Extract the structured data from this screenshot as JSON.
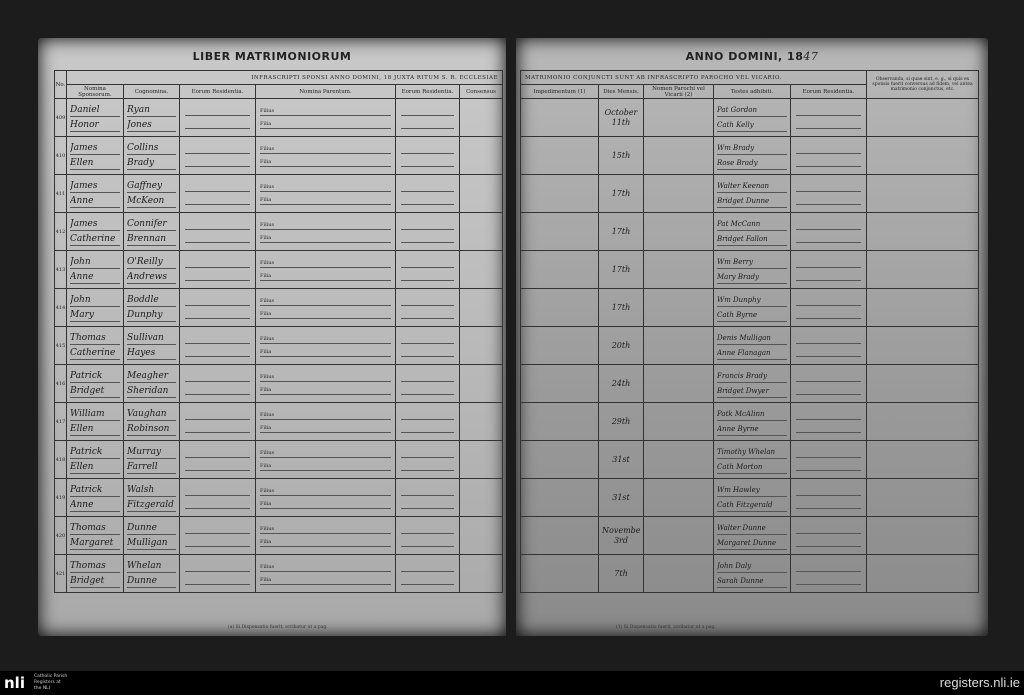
{
  "left_page": {
    "title": "LIBER MATRIMONIORUM",
    "banner": "INFRASCRIPTI SPONSI ANNO DOMINI, 18     JUXTA RITUM S. R. ECCLESIAE",
    "headers": [
      "No.",
      "Nomina Sponsorum.",
      "Cognomina.",
      "Eorum Residentia.",
      "Nomina Parentum.",
      "Eorum Residentia.",
      "Consensus"
    ],
    "filius_label": "Filius",
    "filia_label": "Filia",
    "footnote": "(a) Si Dispensatio fuerit, scribatur ut a pag."
  },
  "right_page": {
    "title": "ANNO DOMINI, 18",
    "title_year": "47",
    "banner": "MATRIMONIO CONJUNCTI SUNT AB INFRASCRIPTO PAROCHO VEL VICARIO.",
    "headers": [
      "Impedimentum (1)",
      "Dies Mensis.",
      "Nomen Parochi vel Vicarii (2)",
      "Testes adhibiti.",
      "Eorum Residentia.",
      "Observanda, si quae sint, e. g., si quis ex sponsis fuerit conversus ad fidem, vel antea matrimonio conjunctus, etc."
    ],
    "footnote": "(1) Si Dispensatio fuerit, scribatur ut a pag."
  },
  "entries": [
    {
      "no": "409",
      "groom": "Daniel",
      "bride": "Honor",
      "groom_surname": "Ryan",
      "bride_surname": "Jones",
      "date": "October 11th",
      "witness1": "Pat Gordon",
      "witness2": "Cath Kelly"
    },
    {
      "no": "410",
      "groom": "James",
      "bride": "Ellen",
      "groom_surname": "Collins",
      "bride_surname": "Brady",
      "date": "15th",
      "witness1": "Wm Brady",
      "witness2": "Rose Brady"
    },
    {
      "no": "411",
      "groom": "James",
      "bride": "Anne",
      "groom_surname": "Gaffney",
      "bride_surname": "McKeon",
      "date": "17th",
      "witness1": "Walter Keenan",
      "witness2": "Bridget Dunne"
    },
    {
      "no": "412",
      "groom": "James",
      "bride": "Catherine",
      "groom_surname": "Connifer",
      "bride_surname": "Brennan",
      "date": "17th",
      "witness1": "Pat McCann",
      "witness2": "Bridget Fallon"
    },
    {
      "no": "413",
      "groom": "John",
      "bride": "Anne",
      "groom_surname": "O'Reilly",
      "bride_surname": "Andrews",
      "date": "17th",
      "witness1": "Wm Berry",
      "witness2": "Mary Brady"
    },
    {
      "no": "414",
      "groom": "John",
      "bride": "Mary",
      "groom_surname": "Boddle",
      "bride_surname": "Dunphy",
      "date": "17th",
      "witness1": "Wm Dunphy",
      "witness2": "Cath Byrne"
    },
    {
      "no": "415",
      "groom": "Thomas",
      "bride": "Catherine",
      "groom_surname": "Sullivan",
      "bride_surname": "Hayes",
      "date": "20th",
      "witness1": "Denis Mulligan",
      "witness2": "Anne Flanagan"
    },
    {
      "no": "416",
      "groom": "Patrick",
      "bride": "Bridget",
      "groom_surname": "Meagher",
      "bride_surname": "Sheridan",
      "date": "24th",
      "witness1": "Francis Brady",
      "witness2": "Bridget Dwyer"
    },
    {
      "no": "417",
      "groom": "William",
      "bride": "Ellen",
      "groom_surname": "Vaughan",
      "bride_surname": "Robinson",
      "date": "29th",
      "witness1": "Patk McAlinn",
      "witness2": "Anne Byrne"
    },
    {
      "no": "418",
      "groom": "Patrick",
      "bride": "Ellen",
      "groom_surname": "Murray",
      "bride_surname": "Farrell",
      "date": "31st",
      "witness1": "Timothy Whelan",
      "witness2": "Cath Morton"
    },
    {
      "no": "419",
      "groom": "Patrick",
      "bride": "Anne",
      "groom_surname": "Walsh",
      "bride_surname": "Fitzgerald",
      "date": "31st",
      "witness1": "Wm Hawley",
      "witness2": "Cath Fitzgerald"
    },
    {
      "no": "420",
      "groom": "Thomas",
      "bride": "Margaret",
      "groom_surname": "Dunne",
      "bride_surname": "Mulligan",
      "date": "November 3rd",
      "witness1": "Walter Dunne",
      "witness2": "Margaret Dunne"
    },
    {
      "no": "421",
      "groom": "Thomas",
      "bride": "Bridget",
      "groom_surname": "Whelan",
      "bride_surname": "Dunne",
      "date": "7th",
      "witness1": "John Daly",
      "witness2": "Sarah Dunne"
    }
  ],
  "footer": {
    "logo": "nli",
    "logo_caption": "Catholic Parish\nRegisters at\nthe NLI",
    "site": "registers.nli.ie"
  },
  "colors": {
    "background": "#1c1c1c",
    "paper": "#c2c2c2",
    "ink": "#1a1a1a",
    "footer_bar": "#000000"
  }
}
